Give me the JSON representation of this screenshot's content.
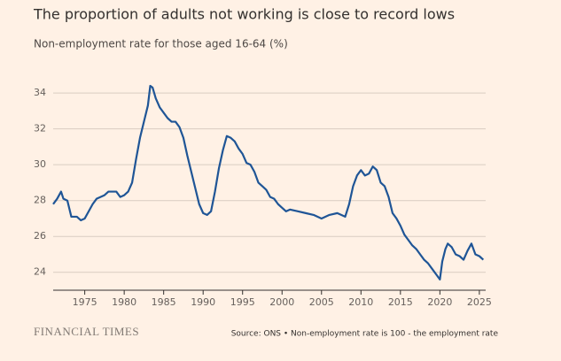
{
  "chart_data": {
    "type": "line",
    "title": "The proportion of adults not working is close to record lows",
    "subtitle": "Non-employment rate for those aged 16-64 (%)",
    "source": "Source: ONS • Non-employment rate is 100 - the employment rate",
    "logo": "FINANCIAL TIMES",
    "color": "#1f5596",
    "grid": true,
    "xlim": [
      1971,
      2025.8
    ],
    "xticks": [
      1975,
      1980,
      1985,
      1990,
      1995,
      2000,
      2005,
      2010,
      2015,
      2020,
      2025
    ],
    "ylim": [
      23,
      34.5
    ],
    "yticks": [
      24,
      26,
      28,
      30,
      32,
      34
    ],
    "x": [
      1971.0,
      1971.5,
      1972.0,
      1972.3,
      1972.8,
      1973.3,
      1974.0,
      1974.5,
      1975.0,
      1975.5,
      1976.0,
      1976.5,
      1977.0,
      1977.5,
      1978.0,
      1979.0,
      1979.5,
      1980.0,
      1980.5,
      1981.0,
      1981.5,
      1982.0,
      1982.5,
      1983.0,
      1983.3,
      1983.6,
      1984.0,
      1984.5,
      1985.0,
      1985.5,
      1986.0,
      1986.5,
      1987.0,
      1987.5,
      1988.0,
      1988.5,
      1989.0,
      1989.5,
      1990.0,
      1990.5,
      1991.0,
      1991.5,
      1992.0,
      1992.5,
      1993.0,
      1993.5,
      1994.0,
      1994.5,
      1995.0,
      1995.5,
      1996.0,
      1996.5,
      1997.0,
      1997.5,
      1998.0,
      1998.5,
      1999.0,
      1999.5,
      2000.0,
      2000.5,
      2001.0,
      2002.0,
      2003.0,
      2004.0,
      2005.0,
      2006.0,
      2007.0,
      2008.0,
      2008.5,
      2009.0,
      2009.5,
      2010.0,
      2010.5,
      2011.0,
      2011.5,
      2012.0,
      2012.5,
      2013.0,
      2013.5,
      2014.0,
      2014.5,
      2015.0,
      2015.5,
      2016.0,
      2016.5,
      2017.0,
      2017.5,
      2018.0,
      2018.5,
      2019.0,
      2019.5,
      2020.0,
      2020.3,
      2020.7,
      2021.0,
      2021.5,
      2022.0,
      2022.5,
      2023.0,
      2023.5,
      2024.0,
      2024.5,
      2025.0,
      2025.5
    ],
    "values": [
      27.8,
      28.1,
      28.5,
      28.1,
      28.0,
      27.1,
      27.1,
      26.9,
      27.0,
      27.4,
      27.8,
      28.1,
      28.2,
      28.3,
      28.5,
      28.5,
      28.2,
      28.3,
      28.5,
      29.0,
      30.3,
      31.5,
      32.4,
      33.3,
      34.4,
      34.3,
      33.7,
      33.2,
      32.9,
      32.6,
      32.4,
      32.4,
      32.1,
      31.5,
      30.5,
      29.6,
      28.7,
      27.8,
      27.3,
      27.2,
      27.4,
      28.5,
      29.8,
      30.8,
      31.6,
      31.5,
      31.3,
      30.9,
      30.6,
      30.1,
      30.0,
      29.6,
      29.0,
      28.8,
      28.6,
      28.2,
      28.1,
      27.8,
      27.6,
      27.4,
      27.5,
      27.4,
      27.3,
      27.2,
      27.0,
      27.2,
      27.3,
      27.1,
      27.8,
      28.8,
      29.4,
      29.7,
      29.4,
      29.5,
      29.9,
      29.7,
      29.0,
      28.8,
      28.2,
      27.3,
      27.0,
      26.6,
      26.1,
      25.8,
      25.5,
      25.3,
      25.0,
      24.7,
      24.5,
      24.2,
      23.9,
      23.6,
      24.6,
      25.3,
      25.6,
      25.4,
      25.0,
      24.9,
      24.7,
      25.2,
      25.6,
      25.0,
      24.9,
      24.7
    ]
  }
}
